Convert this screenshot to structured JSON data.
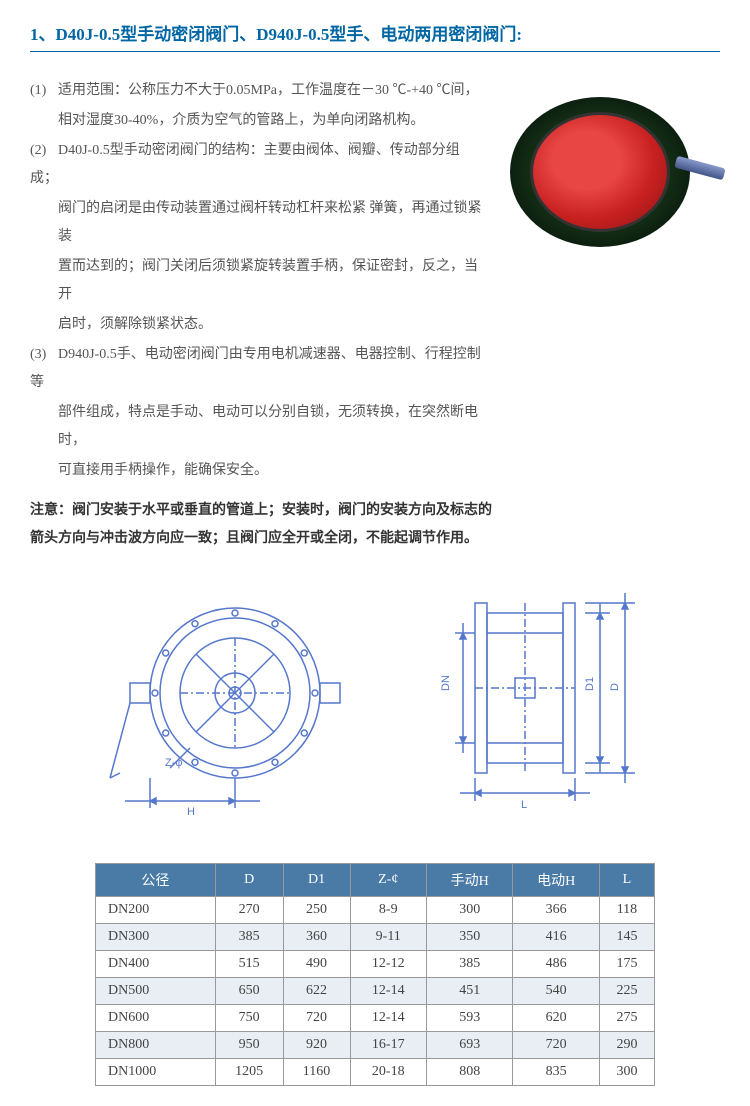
{
  "title": "1、D40J-0.5型手动密闭阀门、D940J-0.5型手、电动两用密闭阀门:",
  "items": [
    {
      "num": "(1)",
      "lines": [
        "适用范围：公称压力不大于0.05MPa，工作温度在－30 ℃-+40 ℃间，",
        "相对湿度30-40%，介质为空气的管路上，为单向闭路机构。"
      ]
    },
    {
      "num": "(2)",
      "lines": [
        "D40J-0.5型手动密闭阀门的结构：主要由阀体、阀瓣、传动部分组成；",
        "阀门的启闭是由传动装置通过阀杆转动杠杆来松紧 弹簧，再通过锁紧装",
        "置而达到的；阀门关闭后须锁紧旋转装置手柄，保证密封，反之，当开",
        "启时，须解除锁紧状态。"
      ]
    },
    {
      "num": "(3)",
      "lines": [
        "D940J-0.5手、电动密闭阀门由专用电机减速器、电器控制、行程控制等",
        "部件组成，特点是手动、电动可以分别自锁，无须转换，在突然断电时，",
        "可直接用手柄操作，能确保安全。"
      ]
    }
  ],
  "note_lines": [
    "注意：阀门安装于水平或垂直的管道上；安装时，阀门的安装方向及标志的",
    "箭头方向与冲击波方向应一致；且阀门应全开或全闭，不能起调节作用。"
  ],
  "diagram_labels": {
    "z_phi": "Z-φ",
    "h": "H",
    "dn": "DN",
    "l": "L",
    "d1": "D1",
    "d": "D"
  },
  "table": {
    "headers": [
      "公径",
      "D",
      "D1",
      "Z-¢",
      "手动H",
      "电动H",
      "L"
    ],
    "rows": [
      [
        "DN200",
        "270",
        "250",
        "8-9",
        "300",
        "366",
        "118"
      ],
      [
        "DN300",
        "385",
        "360",
        "9-11",
        "350",
        "416",
        "145"
      ],
      [
        "DN400",
        "515",
        "490",
        "12-12",
        "385",
        "486",
        "175"
      ],
      [
        "DN500",
        "650",
        "622",
        "12-14",
        "451",
        "540",
        "225"
      ],
      [
        "DN600",
        "750",
        "720",
        "12-14",
        "593",
        "620",
        "275"
      ],
      [
        "DN800",
        "950",
        "920",
        "16-17",
        "693",
        "720",
        "290"
      ],
      [
        "DN1000",
        "1205",
        "1160",
        "20-18",
        "808",
        "835",
        "300"
      ]
    ],
    "header_bg": "#4a7ba6",
    "stripe_bg": "#e8eef4"
  }
}
